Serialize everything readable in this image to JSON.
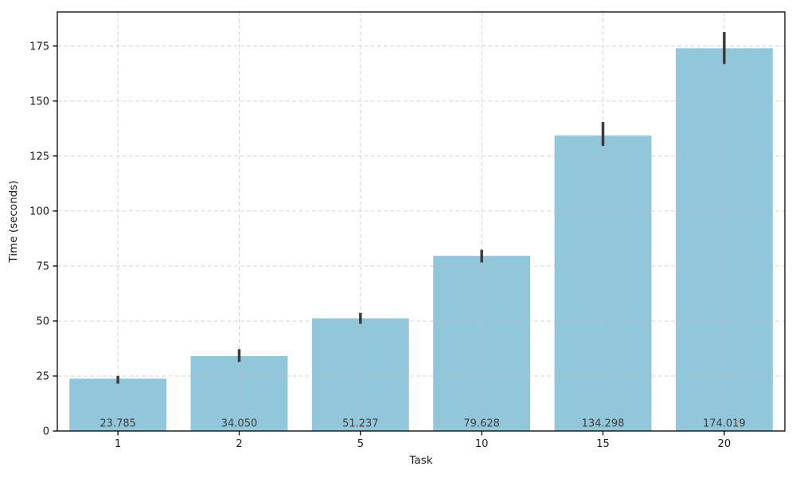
{
  "chart_data": {
    "type": "bar",
    "title": "",
    "xlabel": "Task",
    "ylabel": "Time (seconds)",
    "categories": [
      "1",
      "2",
      "5",
      "10",
      "15",
      "20"
    ],
    "values": [
      23.785,
      34.05,
      51.237,
      79.628,
      134.298,
      174.019
    ],
    "bar_labels": [
      "23.785",
      "34.050",
      "51.237",
      "79.628",
      "134.298",
      "174.019"
    ],
    "error_low": [
      21.5,
      31.4,
      48.7,
      76.6,
      129.6,
      166.8
    ],
    "error_high": [
      25.1,
      37.2,
      53.7,
      82.4,
      140.5,
      181.4
    ],
    "yticks": [
      0,
      25,
      50,
      75,
      100,
      125,
      150,
      175
    ],
    "ylim": [
      0,
      190.5
    ],
    "grid": "dashed, both axes",
    "legend": "none",
    "colors": {
      "bar": "#92C6DB",
      "error_bar": "#3C3C3C",
      "grid": "#BFBFBF",
      "axis": "#000000",
      "value_label_text": "#3F3F3F",
      "tick_text": "#1A1A1A"
    }
  }
}
